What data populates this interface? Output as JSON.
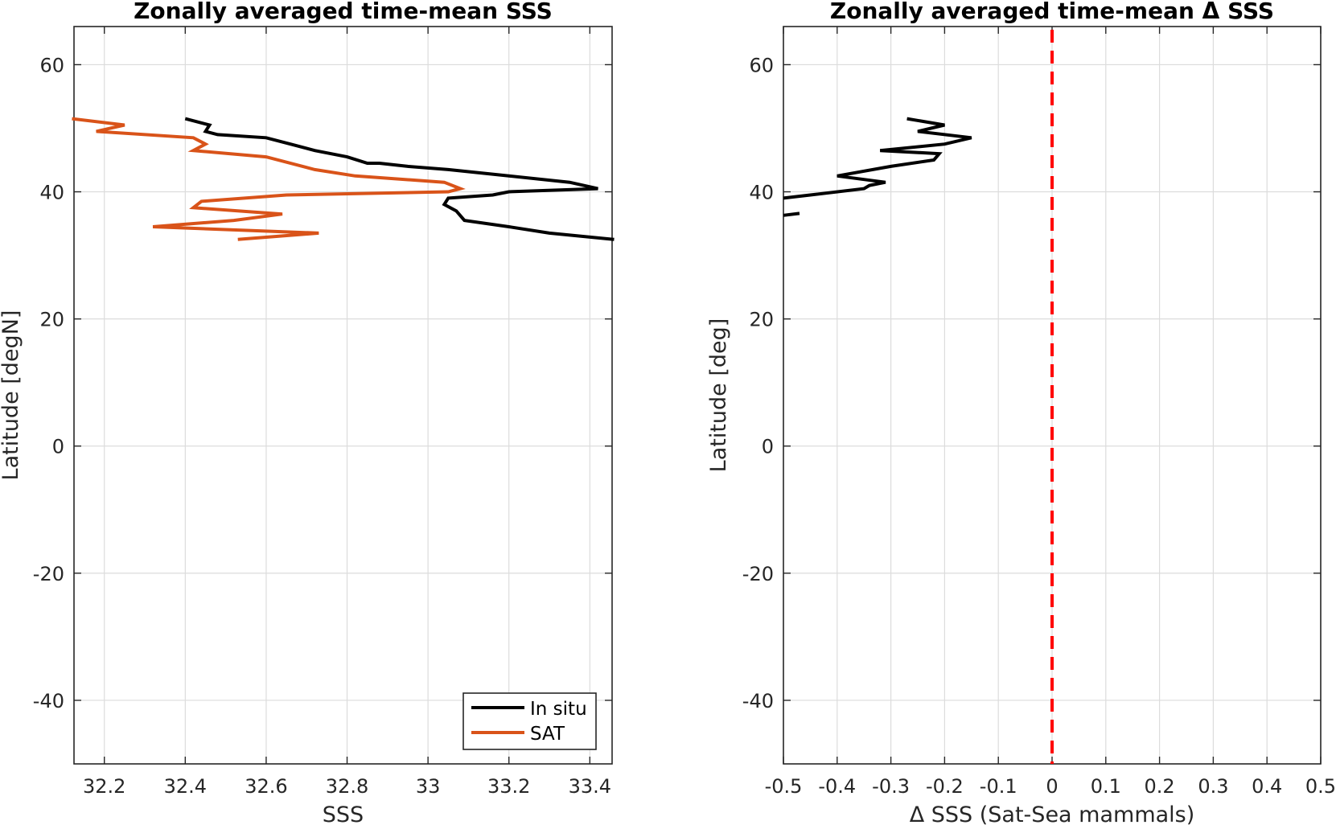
{
  "chart_data": [
    {
      "type": "line",
      "title": "Zonally averaged time-mean SSS",
      "xlabel": "SSS",
      "ylabel": "Latitude [degN]",
      "xlim": [
        32.125,
        33.455
      ],
      "ylim": [
        -50,
        66
      ],
      "xticks": [
        32.2,
        32.4,
        32.6,
        32.8,
        33,
        33.2,
        33.4
      ],
      "yticks": [
        -40,
        -20,
        0,
        20,
        40,
        60
      ],
      "grid": true,
      "legend": {
        "placement": "bottom-right",
        "entries": [
          "In situ",
          "SAT"
        ]
      },
      "series": [
        {
          "name": "In situ",
          "color": "#000000",
          "x": [
            32.4,
            32.46,
            32.45,
            32.48,
            32.6,
            32.66,
            32.72,
            32.8,
            32.85,
            32.88,
            32.95,
            33.05,
            33.2,
            33.35,
            33.42,
            33.2,
            33.16,
            33.05,
            33.04,
            33.07,
            33.09,
            33.2,
            33.3,
            33.46
          ],
          "y": [
            51.5,
            50.5,
            49.5,
            49.0,
            48.5,
            47.5,
            46.5,
            45.5,
            44.5,
            44.5,
            44.0,
            43.5,
            42.5,
            41.5,
            40.5,
            40.0,
            39.5,
            39.0,
            38.0,
            37.0,
            35.5,
            34.5,
            33.5,
            32.5
          ]
        },
        {
          "name": "SAT",
          "color": "#D95319",
          "x": [
            32.12,
            32.25,
            32.18,
            32.42,
            32.45,
            32.42,
            32.6,
            32.72,
            32.82,
            33.04,
            33.08,
            33.05,
            32.65,
            32.44,
            32.42,
            32.64,
            32.52,
            32.32,
            32.73,
            32.53
          ],
          "y": [
            51.5,
            50.5,
            49.5,
            48.5,
            47.5,
            46.5,
            45.5,
            43.5,
            42.5,
            41.5,
            40.5,
            40.0,
            39.5,
            38.5,
            37.5,
            36.5,
            35.5,
            34.5,
            33.5,
            32.5
          ]
        }
      ]
    },
    {
      "type": "line",
      "title": "Zonally averaged time-mean Δ SSS",
      "xlabel": "Δ SSS (Sat-Sea mammals)",
      "ylabel": "Latitude [deg]",
      "xlim": [
        -0.5,
        0.5
      ],
      "ylim": [
        -50,
        66
      ],
      "xticks": [
        "-0.5",
        "-0.4",
        "-0.3",
        "-0.2",
        "-0.1",
        "0",
        "0.1",
        "0.2",
        "0.3",
        "0.4",
        "0.5"
      ],
      "yticks": [
        -40,
        -20,
        0,
        20,
        40,
        60
      ],
      "grid": true,
      "reference_line": {
        "x": 0,
        "color": "#FF0000",
        "style": "dashed"
      },
      "series": [
        {
          "color": "#000000",
          "x": [
            -0.27,
            -0.2,
            -0.25,
            -0.15,
            -0.2,
            -0.32,
            -0.21,
            -0.22,
            -0.3,
            -0.4,
            -0.31,
            -0.34,
            -0.35,
            -0.45,
            -0.5
          ],
          "y": [
            51.5,
            50.5,
            49.5,
            48.5,
            47.5,
            46.5,
            46.0,
            45.0,
            44.0,
            42.5,
            41.5,
            41.0,
            40.5,
            39.5,
            39.0
          ]
        },
        {
          "color": "#000000",
          "x": [
            -0.5,
            -0.47
          ],
          "y": [
            36.3,
            36.6
          ]
        }
      ]
    }
  ]
}
